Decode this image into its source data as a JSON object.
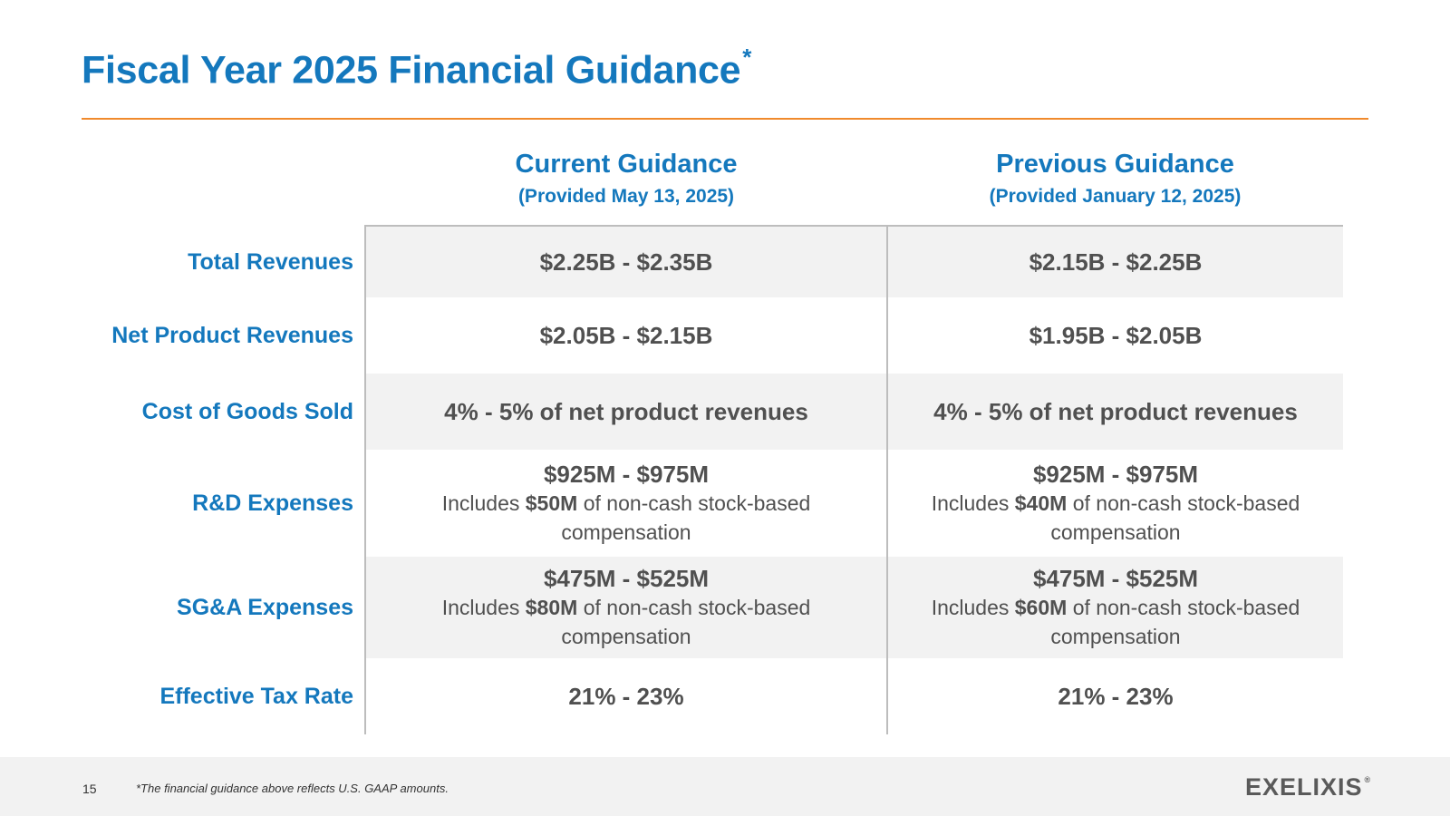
{
  "title": {
    "text": "Fiscal Year 2025 Financial Guidance",
    "marker": "*"
  },
  "columns": [
    {
      "heading": "Current Guidance",
      "subheading": "(Provided May 13, 2025)"
    },
    {
      "heading": "Previous Guidance",
      "subheading": "(Provided January 12, 2025)"
    }
  ],
  "rows": [
    {
      "label": "Total Revenues",
      "current": {
        "value": "$2.25B - $2.35B"
      },
      "previous": {
        "value": "$2.15B - $2.25B"
      }
    },
    {
      "label": "Net Product Revenues",
      "current": {
        "value": "$2.05B - $2.15B"
      },
      "previous": {
        "value": "$1.95B - $2.05B"
      }
    },
    {
      "label": "Cost of Goods Sold",
      "current": {
        "value": "4% - 5% of net product revenues"
      },
      "previous": {
        "value": "4% - 5% of net product revenues"
      }
    },
    {
      "label": "R&D Expenses",
      "current": {
        "value": "$925M - $975M",
        "note_prefix": "Includes ",
        "note_amount": "$50M",
        "note_suffix": " of non-cash stock-based compensation"
      },
      "previous": {
        "value": "$925M - $975M",
        "note_prefix": "Includes ",
        "note_amount": "$40M",
        "note_suffix": " of non-cash stock-based compensation"
      }
    },
    {
      "label": "SG&A Expenses",
      "current": {
        "value": "$475M - $525M",
        "note_prefix": "Includes ",
        "note_amount": "$80M",
        "note_suffix": " of non-cash stock-based compensation"
      },
      "previous": {
        "value": "$475M - $525M",
        "note_prefix": "Includes ",
        "note_amount": "$60M",
        "note_suffix": " of non-cash stock-based compensation"
      }
    },
    {
      "label": "Effective Tax Rate",
      "current": {
        "value": "21% - 23%"
      },
      "previous": {
        "value": "21% - 23%"
      }
    }
  ],
  "footer": {
    "page_number": "15",
    "footnote": "*The financial guidance above reflects U.S. GAAP amounts.",
    "logo_text": "EXELIXIS",
    "logo_mark": "®"
  },
  "colors": {
    "accent_blue": "#1478bd",
    "rule_orange": "#f08a2c",
    "row_shade": "#f2f2f2",
    "body_text": "#505050"
  }
}
